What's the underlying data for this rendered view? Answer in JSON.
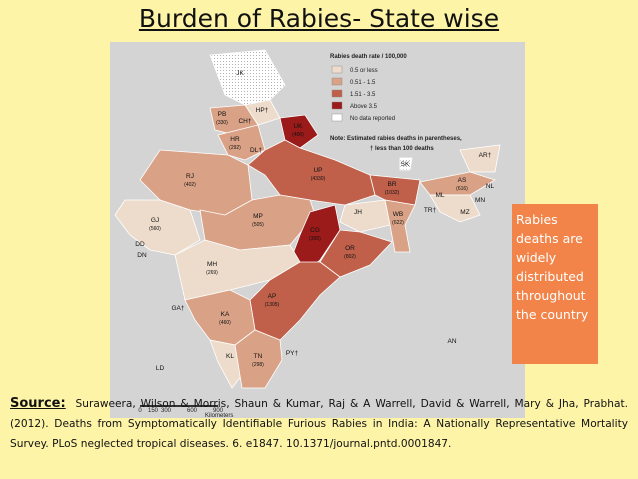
{
  "title": "Burden of Rabies- State wise",
  "map": {
    "legend": {
      "title": "Rabies death rate / 100,000",
      "items": [
        {
          "label": "0.5 or less",
          "color": "#eddccb"
        },
        {
          "label": "0.51 - 1.5",
          "color": "#d9a286"
        },
        {
          "label": "1.51 - 3.5",
          "color": "#c0604a"
        },
        {
          "label": "Above 3.5",
          "color": "#9b1a1a"
        },
        {
          "label": "No data reported",
          "color": "#ffffff"
        }
      ],
      "note": "Note:  Estimated rabies deaths in parentheses,",
      "note2": "† less than 100 deaths"
    },
    "scale": {
      "ticks": [
        "0",
        "150",
        "300",
        "600",
        "900"
      ],
      "unit": "Kilometers"
    },
    "labels": [
      {
        "code": "JK"
      },
      {
        "code": "HP†"
      },
      {
        "code": "PB",
        "deaths": "(330)"
      },
      {
        "code": "CH†"
      },
      {
        "code": "UK",
        "deaths": "(400)"
      },
      {
        "code": "HR",
        "deaths": "(292)"
      },
      {
        "code": "DL†"
      },
      {
        "code": "RJ",
        "deaths": "(402)"
      },
      {
        "code": "UP",
        "deaths": "(4330)"
      },
      {
        "code": "BR",
        "deaths": "(1032)"
      },
      {
        "code": "SK"
      },
      {
        "code": "AR†"
      },
      {
        "code": "AS",
        "deaths": "(616)"
      },
      {
        "code": "NL"
      },
      {
        "code": "ML"
      },
      {
        "code": "MN"
      },
      {
        "code": "MZ"
      },
      {
        "code": "TR†"
      },
      {
        "code": "WB",
        "deaths": "(622)"
      },
      {
        "code": "JH"
      },
      {
        "code": "GJ",
        "deaths": "(560)"
      },
      {
        "code": "MP",
        "deaths": "(505)"
      },
      {
        "code": "CG",
        "deaths": "(300)"
      },
      {
        "code": "OR",
        "deaths": "(802)"
      },
      {
        "code": "DD"
      },
      {
        "code": "DN"
      },
      {
        "code": "MH",
        "deaths": "(269)"
      },
      {
        "code": "AP",
        "deaths": "(1305)"
      },
      {
        "code": "GA†"
      },
      {
        "code": "KA",
        "deaths": "(460)"
      },
      {
        "code": "KL"
      },
      {
        "code": "TN",
        "deaths": "(298)"
      },
      {
        "code": "PY†"
      },
      {
        "code": "LD"
      },
      {
        "code": "AN"
      }
    ]
  },
  "callout": "Rabies deaths are widely distributed throughout the country",
  "source": {
    "label": "Source:",
    "text": "Suraweera, Wilson & Morris, Shaun & Kumar, Raj & A Warrell, David & Warrell, Mary & Jha, Prabhat. (2012). Deaths from Symptomatically Identifiable Furious Rabies in India: A Nationally Representative Mortality Survey. PLoS neglected tropical diseases. 6. e1847. 10.1371/journal.pntd.0001847."
  }
}
